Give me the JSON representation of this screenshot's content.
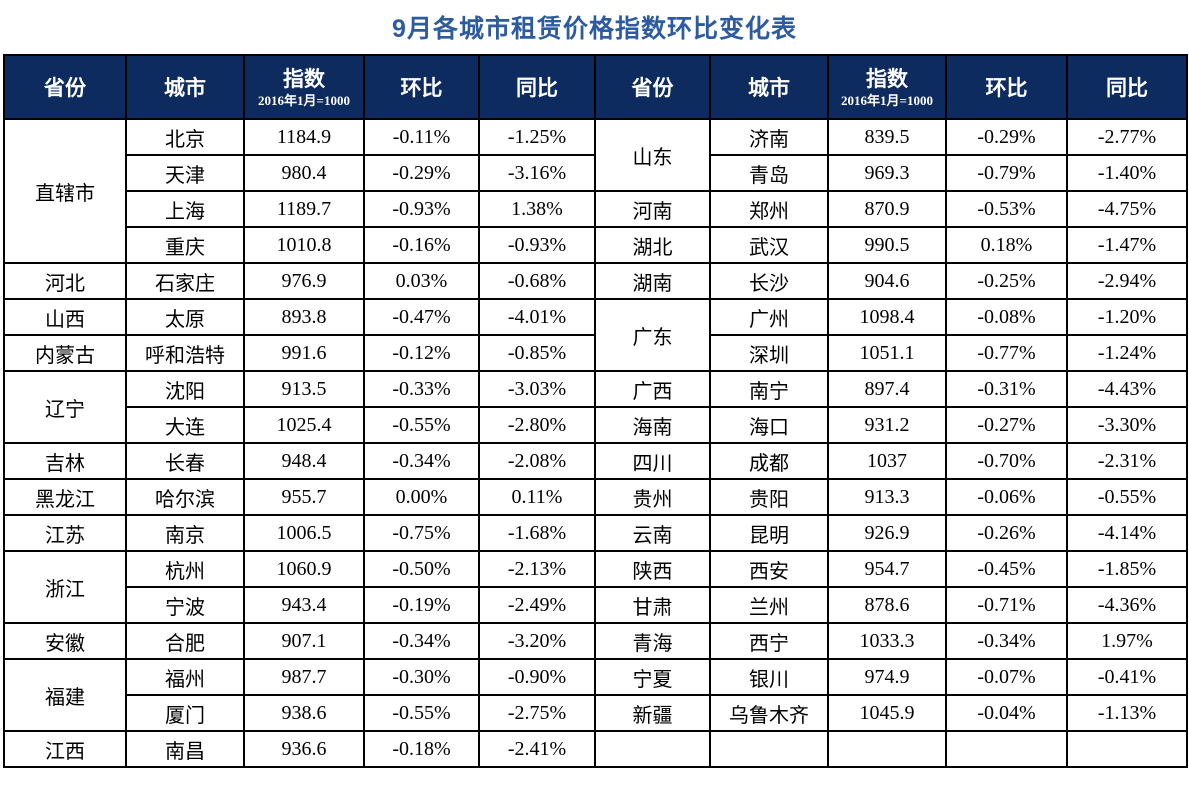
{
  "chart_data": {
    "type": "table",
    "title": "9月各城市租赁价格指数环比变化表",
    "title_color": "#2c5ba0",
    "header_bg_color": "#0d2b5e",
    "header": {
      "province": "省份",
      "city": "城市",
      "index": "指数",
      "index_base": "2016年1月=1000",
      "mom": "环比",
      "yoy": "同比"
    },
    "left_rows": [
      {
        "province": "直辖市",
        "span": 4,
        "city": "北京",
        "index": "1184.9",
        "mom": "-0.11%",
        "yoy": "-1.25%"
      },
      {
        "city": "天津",
        "index": "980.4",
        "mom": "-0.29%",
        "yoy": "-3.16%"
      },
      {
        "city": "上海",
        "index": "1189.7",
        "mom": "-0.93%",
        "yoy": "1.38%"
      },
      {
        "city": "重庆",
        "index": "1010.8",
        "mom": "-0.16%",
        "yoy": "-0.93%"
      },
      {
        "province": "河北",
        "span": 1,
        "city": "石家庄",
        "index": "976.9",
        "mom": "0.03%",
        "yoy": "-0.68%"
      },
      {
        "province": "山西",
        "span": 1,
        "city": "太原",
        "index": "893.8",
        "mom": "-0.47%",
        "yoy": "-4.01%"
      },
      {
        "province": "内蒙古",
        "span": 1,
        "city": "呼和浩特",
        "index": "991.6",
        "mom": "-0.12%",
        "yoy": "-0.85%"
      },
      {
        "province": "辽宁",
        "span": 2,
        "city": "沈阳",
        "index": "913.5",
        "mom": "-0.33%",
        "yoy": "-3.03%"
      },
      {
        "city": "大连",
        "index": "1025.4",
        "mom": "-0.55%",
        "yoy": "-2.80%"
      },
      {
        "province": "吉林",
        "span": 1,
        "city": "长春",
        "index": "948.4",
        "mom": "-0.34%",
        "yoy": "-2.08%"
      },
      {
        "province": "黑龙江",
        "span": 1,
        "city": "哈尔滨",
        "index": "955.7",
        "mom": "0.00%",
        "yoy": "0.11%"
      },
      {
        "province": "江苏",
        "span": 1,
        "city": "南京",
        "index": "1006.5",
        "mom": "-0.75%",
        "yoy": "-1.68%"
      },
      {
        "province": "浙江",
        "span": 2,
        "city": "杭州",
        "index": "1060.9",
        "mom": "-0.50%",
        "yoy": "-2.13%"
      },
      {
        "city": "宁波",
        "index": "943.4",
        "mom": "-0.19%",
        "yoy": "-2.49%"
      },
      {
        "province": "安徽",
        "span": 1,
        "city": "合肥",
        "index": "907.1",
        "mom": "-0.34%",
        "yoy": "-3.20%"
      },
      {
        "province": "福建",
        "span": 2,
        "city": "福州",
        "index": "987.7",
        "mom": "-0.30%",
        "yoy": "-0.90%"
      },
      {
        "city": "厦门",
        "index": "938.6",
        "mom": "-0.55%",
        "yoy": "-2.75%"
      },
      {
        "province": "江西",
        "span": 1,
        "city": "南昌",
        "index": "936.6",
        "mom": "-0.18%",
        "yoy": "-2.41%"
      }
    ],
    "right_rows": [
      {
        "province": "山东",
        "span": 2,
        "city": "济南",
        "index": "839.5",
        "mom": "-0.29%",
        "yoy": "-2.77%"
      },
      {
        "city": "青岛",
        "index": "969.3",
        "mom": "-0.79%",
        "yoy": "-1.40%"
      },
      {
        "province": "河南",
        "span": 1,
        "city": "郑州",
        "index": "870.9",
        "mom": "-0.53%",
        "yoy": "-4.75%"
      },
      {
        "province": "湖北",
        "span": 1,
        "city": "武汉",
        "index": "990.5",
        "mom": "0.18%",
        "yoy": "-1.47%"
      },
      {
        "province": "湖南",
        "span": 1,
        "city": "长沙",
        "index": "904.6",
        "mom": "-0.25%",
        "yoy": "-2.94%"
      },
      {
        "province": "广东",
        "span": 2,
        "city": "广州",
        "index": "1098.4",
        "mom": "-0.08%",
        "yoy": "-1.20%"
      },
      {
        "city": "深圳",
        "index": "1051.1",
        "mom": "-0.77%",
        "yoy": "-1.24%"
      },
      {
        "province": "广西",
        "span": 1,
        "city": "南宁",
        "index": "897.4",
        "mom": "-0.31%",
        "yoy": "-4.43%"
      },
      {
        "province": "海南",
        "span": 1,
        "city": "海口",
        "index": "931.2",
        "mom": "-0.27%",
        "yoy": "-3.30%"
      },
      {
        "province": "四川",
        "span": 1,
        "city": "成都",
        "index": "1037",
        "mom": "-0.70%",
        "yoy": "-2.31%"
      },
      {
        "province": "贵州",
        "span": 1,
        "city": "贵阳",
        "index": "913.3",
        "mom": "-0.06%",
        "yoy": "-0.55%"
      },
      {
        "province": "云南",
        "span": 1,
        "city": "昆明",
        "index": "926.9",
        "mom": "-0.26%",
        "yoy": "-4.14%"
      },
      {
        "province": "陕西",
        "span": 1,
        "city": "西安",
        "index": "954.7",
        "mom": "-0.45%",
        "yoy": "-1.85%"
      },
      {
        "province": "甘肃",
        "span": 1,
        "city": "兰州",
        "index": "878.6",
        "mom": "-0.71%",
        "yoy": "-4.36%"
      },
      {
        "province": "青海",
        "span": 1,
        "city": "西宁",
        "index": "1033.3",
        "mom": "-0.34%",
        "yoy": "1.97%"
      },
      {
        "province": "宁夏",
        "span": 1,
        "city": "银川",
        "index": "974.9",
        "mom": "-0.07%",
        "yoy": "-0.41%"
      },
      {
        "province": "新疆",
        "span": 1,
        "city": "乌鲁木齐",
        "index": "1045.9",
        "mom": "-0.04%",
        "yoy": "-1.13%"
      },
      {
        "province": "",
        "span": 1,
        "city": "",
        "index": "",
        "mom": "",
        "yoy": ""
      }
    ]
  }
}
